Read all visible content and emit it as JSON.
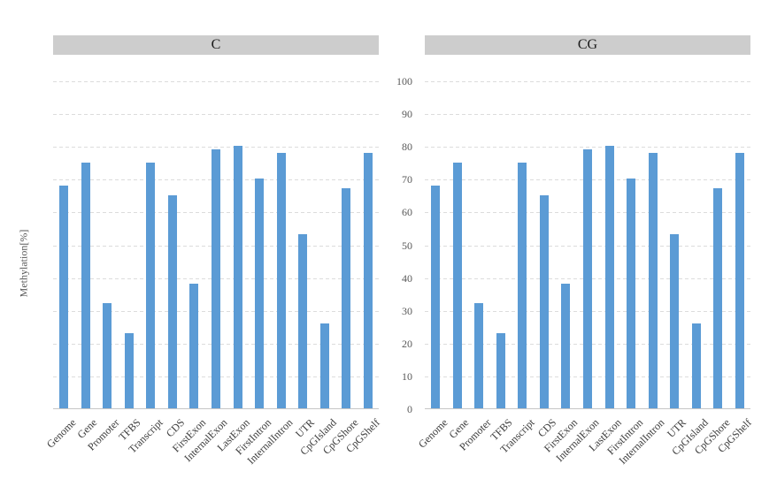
{
  "y_axis": {
    "title": "Methylation[%]",
    "ticks": [
      0,
      10,
      20,
      30,
      40,
      50,
      60,
      70,
      80,
      90,
      100
    ],
    "min": 0,
    "max": 100
  },
  "chart_data": [
    {
      "type": "bar",
      "title": "C",
      "categories": [
        "Genome",
        "Gene",
        "Promoter",
        "TFBS",
        "Transcript",
        "CDS",
        "FirstExon",
        "InternalExon",
        "LastExon",
        "FirstIntron",
        "InternalIntron",
        "UTR",
        "CpGIsland",
        "CpGShore",
        "CpGShelf"
      ],
      "values": [
        68,
        75,
        32,
        23,
        75,
        65,
        38,
        79,
        80,
        70,
        78,
        53,
        26,
        67,
        78
      ],
      "xlabel": "",
      "ylabel": "Methylation[%]",
      "ylim": [
        0,
        100
      ],
      "grid": "dashed-horizontal",
      "legend": "none"
    },
    {
      "type": "bar",
      "title": "CG",
      "categories": [
        "Genome",
        "Gene",
        "Promoter",
        "TFBS",
        "Transcript",
        "CDS",
        "FirstExon",
        "InternalExon",
        "LastExon",
        "FirstIntron",
        "InternalIntron",
        "UTR",
        "CpGIsland",
        "CpGShore",
        "CpGShelf"
      ],
      "values": [
        68,
        75,
        32,
        23,
        75,
        65,
        38,
        79,
        80,
        70,
        78,
        53,
        26,
        67,
        78
      ],
      "xlabel": "",
      "ylabel": "Methylation[%]",
      "ylim": [
        0,
        100
      ],
      "grid": "dashed-horizontal",
      "legend": "none"
    }
  ],
  "colors": {
    "bar": "#5b9bd5",
    "header_bg": "#cdcdcd",
    "gridline": "#dcdcdc",
    "axis_line": "#c6c6c6",
    "tick_text": "#595959",
    "category_text": "#3d3d3d"
  }
}
